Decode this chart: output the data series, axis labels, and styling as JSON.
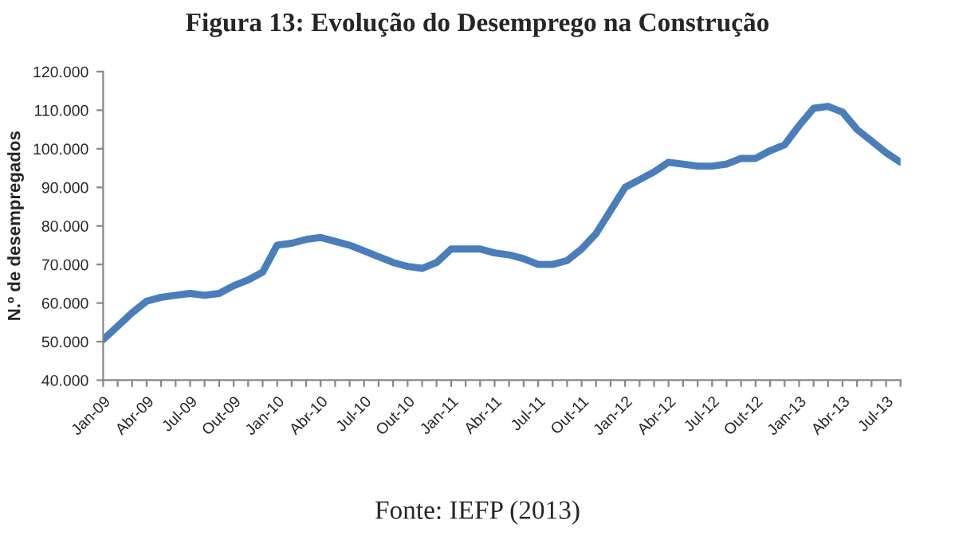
{
  "chart_data": {
    "type": "line",
    "title": "Figura 13: Evolução do Desemprego na Construção",
    "ylabel": "N.º de desempregados",
    "annotations": [
      "Fonte: IEFP (2013)"
    ],
    "categories": [
      "Jan-09",
      null,
      null,
      "Abr-09",
      null,
      null,
      "Jul-09",
      null,
      null,
      "Out-09",
      null,
      null,
      "Jan-10",
      null,
      null,
      "Abr-10",
      null,
      null,
      "Jul-10",
      null,
      null,
      "Out-10",
      null,
      null,
      "Jan-11",
      null,
      null,
      "Abr-11",
      null,
      null,
      "Jul-11",
      null,
      null,
      "Out-11",
      null,
      null,
      "Jan-12",
      null,
      null,
      "Abr-12",
      null,
      null,
      "Jul-12",
      null,
      null,
      "Out-12",
      null,
      null,
      "Jan-13",
      null,
      null,
      "Abr-13",
      null,
      null,
      "Jul-13",
      null
    ],
    "series": [
      {
        "color": "#4a7ebb",
        "values": [
          50500,
          54000,
          57500,
          60500,
          61500,
          62000,
          62500,
          62000,
          62500,
          64500,
          66000,
          68000,
          75000,
          75500,
          76500,
          77000,
          76000,
          75000,
          73500,
          72000,
          70500,
          69500,
          69000,
          70500,
          74000,
          74000,
          74000,
          73000,
          72500,
          71500,
          70000,
          70000,
          71000,
          74000,
          78000,
          84000,
          90000,
          92000,
          94000,
          96500,
          96000,
          95500,
          95500,
          96000,
          97500,
          97500,
          99500,
          101000,
          106000,
          110500,
          111000,
          109500,
          105000,
          102000,
          99000,
          96500
        ]
      }
    ],
    "ylim": [
      40000,
      120000
    ],
    "yticks": [
      {
        "value": 40000,
        "label": "40.000"
      },
      {
        "value": 50000,
        "label": "50.000"
      },
      {
        "value": 60000,
        "label": "60.000"
      },
      {
        "value": 70000,
        "label": "70.000"
      },
      {
        "value": 80000,
        "label": "80.000"
      },
      {
        "value": 90000,
        "label": "90.000"
      },
      {
        "value": 100000,
        "label": "100.000"
      },
      {
        "value": 110000,
        "label": "110.000"
      },
      {
        "value": 120000,
        "label": "120.000"
      }
    ],
    "grid": false,
    "legend": false,
    "marker": "none",
    "line_style": "solid"
  }
}
